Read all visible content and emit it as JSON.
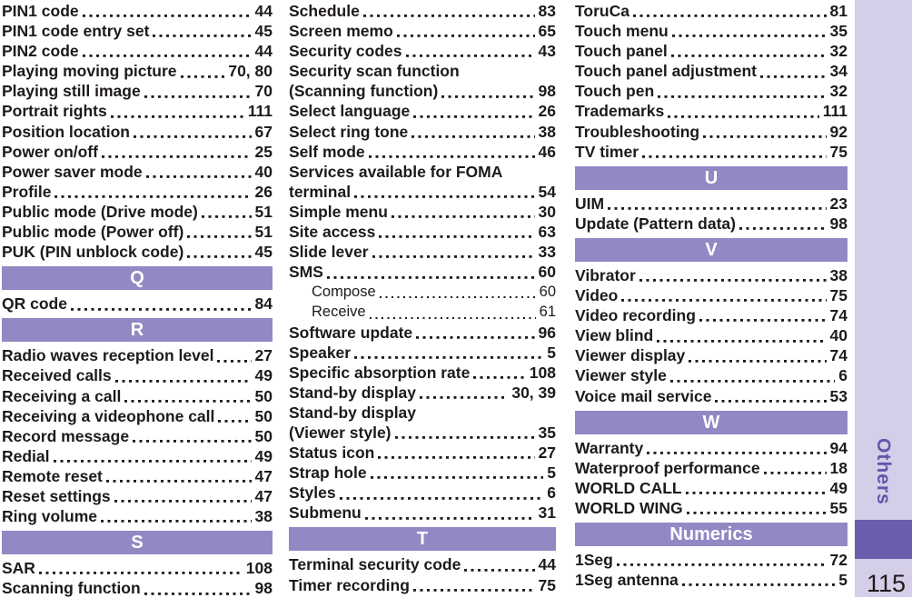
{
  "page": {
    "number": "115"
  },
  "sidebar": {
    "label": "Others"
  },
  "colors": {
    "header_bar": "#9189c4",
    "sidebar_strip": "#d4cee9",
    "sidebar_tab": "#6a5fae",
    "sidebar_text": "#6456a9",
    "text": "#1e1a1b"
  },
  "columns": [
    {
      "lines": [
        {
          "t": "PIN1 code",
          "p": "44"
        },
        {
          "t": "PIN1 code entry set",
          "p": "45"
        },
        {
          "t": "PIN2 code",
          "p": "44"
        },
        {
          "t": "Playing moving picture",
          "p": "70, 80"
        },
        {
          "t": "Playing still image",
          "p": "70"
        },
        {
          "t": "Portrait rights",
          "p": "111"
        },
        {
          "t": "Position location",
          "p": "67"
        },
        {
          "t": "Power on/off",
          "p": "25"
        },
        {
          "t": "Power saver mode",
          "p": "40"
        },
        {
          "t": "Profile",
          "p": "26"
        },
        {
          "t": "Public mode (Drive mode)",
          "p": "51"
        },
        {
          "t": "Public mode (Power off)",
          "p": "51"
        },
        {
          "t": "PUK (PIN unblock code)",
          "p": "45"
        },
        {
          "h": "Q"
        },
        {
          "t": "QR code",
          "p": "84"
        },
        {
          "h": "R"
        },
        {
          "t": "Radio waves reception level",
          "p": "27"
        },
        {
          "t": "Received calls",
          "p": "49"
        },
        {
          "t": "Receiving a call",
          "p": "50"
        },
        {
          "t": "Receiving a videophone call",
          "p": "50"
        },
        {
          "t": "Record message",
          "p": "50"
        },
        {
          "t": "Redial",
          "p": "49"
        },
        {
          "t": "Remote reset",
          "p": "47"
        },
        {
          "t": "Reset settings",
          "p": "47"
        },
        {
          "t": "Ring volume",
          "p": "38"
        },
        {
          "h": "S"
        },
        {
          "t": "SAR",
          "p": "108"
        },
        {
          "t": "Scanning function",
          "p": "98"
        }
      ]
    },
    {
      "lines": [
        {
          "t": "Schedule",
          "p": "83"
        },
        {
          "t": "Screen memo",
          "p": "65"
        },
        {
          "t": "Security codes",
          "p": "43"
        },
        {
          "t": "Security scan function"
        },
        {
          "t": "(Scanning function)",
          "p": "98"
        },
        {
          "t": "Select language",
          "p": "26"
        },
        {
          "t": "Select ring tone",
          "p": "38"
        },
        {
          "t": "Self mode",
          "p": "46"
        },
        {
          "t": "Services available for FOMA"
        },
        {
          "t": "terminal",
          "p": "54"
        },
        {
          "t": "Simple menu",
          "p": "30"
        },
        {
          "t": "Site access",
          "p": "63"
        },
        {
          "t": "Slide lever",
          "p": "33"
        },
        {
          "t": "SMS",
          "p": "60"
        },
        {
          "t": "Compose",
          "p": "60",
          "s": true
        },
        {
          "t": "Receive",
          "p": "61",
          "s": true
        },
        {
          "t": "Software update",
          "p": "96"
        },
        {
          "t": "Speaker",
          "p": "5"
        },
        {
          "t": "Specific absorption rate",
          "p": "108"
        },
        {
          "t": "Stand-by display",
          "p": "30, 39"
        },
        {
          "t": "Stand-by display"
        },
        {
          "t": "(Viewer style)",
          "p": "35"
        },
        {
          "t": "Status icon",
          "p": "27"
        },
        {
          "t": "Strap hole",
          "p": "5"
        },
        {
          "t": "Styles",
          "p": "6"
        },
        {
          "t": "Submenu",
          "p": "31"
        },
        {
          "h": "T"
        },
        {
          "t": "Terminal security code",
          "p": "44"
        },
        {
          "t": "Timer recording",
          "p": "75"
        }
      ]
    },
    {
      "lines": [
        {
          "t": "ToruCa",
          "p": "81"
        },
        {
          "t": "Touch menu",
          "p": "35"
        },
        {
          "t": "Touch panel",
          "p": "32"
        },
        {
          "t": "Touch panel adjustment",
          "p": "34"
        },
        {
          "t": "Touch pen",
          "p": "32"
        },
        {
          "t": "Trademarks",
          "p": "111"
        },
        {
          "t": "Troubleshooting",
          "p": "92"
        },
        {
          "t": "TV timer",
          "p": "75"
        },
        {
          "h": "U"
        },
        {
          "t": "UIM",
          "p": "23"
        },
        {
          "t": "Update (Pattern data)",
          "p": "98"
        },
        {
          "h": "V"
        },
        {
          "t": "Vibrator",
          "p": "38"
        },
        {
          "t": "Video",
          "p": "75"
        },
        {
          "t": "Video recording",
          "p": "74"
        },
        {
          "t": "View blind",
          "p": "40"
        },
        {
          "t": "Viewer display",
          "p": "74"
        },
        {
          "t": "Viewer style",
          "p": "6"
        },
        {
          "t": "Voice mail service",
          "p": "53"
        },
        {
          "h": "W"
        },
        {
          "t": "Warranty",
          "p": "94"
        },
        {
          "t": "Waterproof performance",
          "p": "18"
        },
        {
          "t": "WORLD CALL",
          "p": "49"
        },
        {
          "t": "WORLD WING",
          "p": "55"
        },
        {
          "h": "Numerics"
        },
        {
          "t": "1Seg",
          "p": "72"
        },
        {
          "t": "1Seg antenna",
          "p": "5"
        }
      ]
    }
  ]
}
